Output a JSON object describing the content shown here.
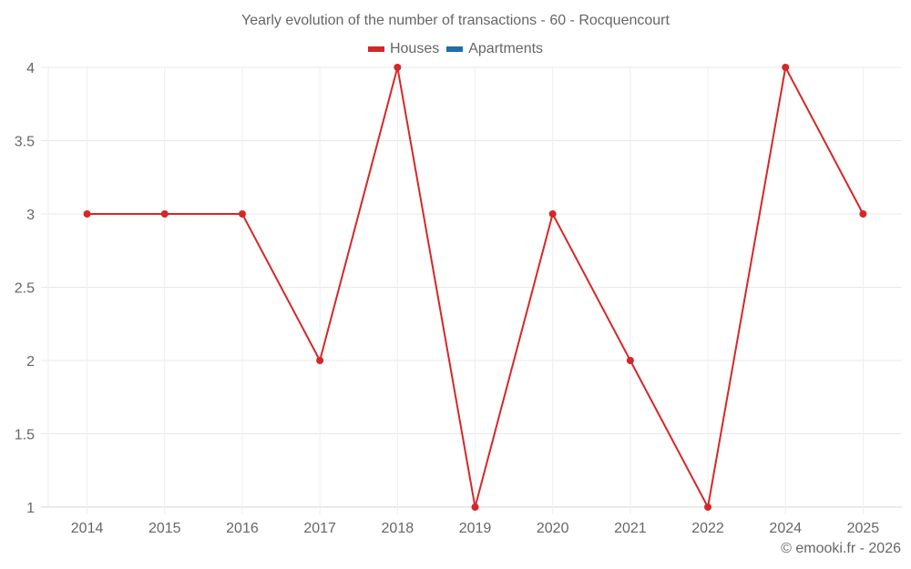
{
  "title": "Yearly evolution of the number of transactions - 60 - Rocquencourt",
  "legend": [
    {
      "label": "Houses",
      "color": "#d62728"
    },
    {
      "label": "Apartments",
      "color": "#1f6ea6"
    }
  ],
  "credit": "© emooki.fr - 2026",
  "chart_data": {
    "type": "line",
    "title": "Yearly evolution of the number of transactions - 60 - Rocquencourt",
    "xlabel": "",
    "ylabel": "",
    "categories": [
      "2014",
      "2015",
      "2016",
      "2017",
      "2018",
      "2019",
      "2020",
      "2021",
      "2022",
      "2024",
      "2025"
    ],
    "series": [
      {
        "name": "Houses",
        "color": "#d62728",
        "values": [
          3,
          3,
          3,
          2,
          4,
          1,
          3,
          2,
          1,
          4,
          3
        ]
      },
      {
        "name": "Apartments",
        "color": "#1f6ea6",
        "values": []
      }
    ],
    "ylim": [
      1,
      4
    ],
    "yticks": [
      "1",
      "1.5",
      "2",
      "2.5",
      "3",
      "3.5",
      "4"
    ],
    "grid": true,
    "legend_position": "top"
  }
}
